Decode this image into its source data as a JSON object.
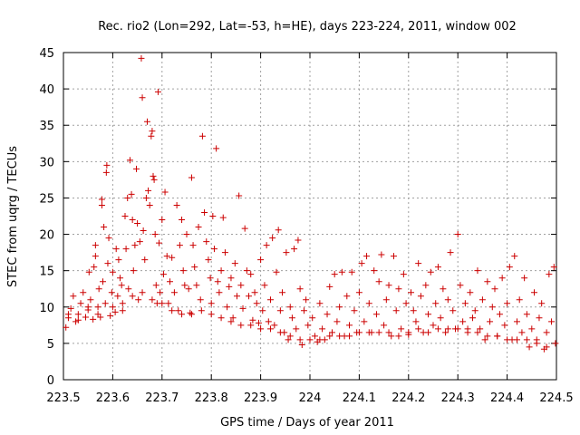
{
  "chart_data": {
    "type": "scatter",
    "title": "Rec. rio2 (Lon=292, Lat=-53, h=HE), days 223-224, 2011, window 002",
    "xlabel": "GPS time / Days of year 2011",
    "ylabel": "STEC from uqrg / TECUs",
    "xlim": [
      223.5,
      224.5
    ],
    "ylim": [
      0,
      45
    ],
    "x_ticks": [
      "223.5",
      "223.6",
      "223.7",
      "223.8",
      "223.9",
      "224",
      "224.1",
      "224.2",
      "224.3",
      "224.4",
      "224.5"
    ],
    "y_ticks": [
      "0",
      "5",
      "10",
      "15",
      "20",
      "25",
      "30",
      "35",
      "40",
      "45"
    ],
    "grid": true,
    "marker": "+",
    "color": "#cc0000",
    "points": [
      [
        223.505,
        7.2
      ],
      [
        223.51,
        8.5
      ],
      [
        223.515,
        9.8
      ],
      [
        223.52,
        11.5
      ],
      [
        223.525,
        8.0
      ],
      [
        223.53,
        9.0
      ],
      [
        223.535,
        10.5
      ],
      [
        223.54,
        12.0
      ],
      [
        223.545,
        8.6
      ],
      [
        223.55,
        9.6
      ],
      [
        223.552,
        14.8
      ],
      [
        223.555,
        11.0
      ],
      [
        223.56,
        8.3
      ],
      [
        223.562,
        15.5
      ],
      [
        223.565,
        17.0
      ],
      [
        223.565,
        18.5
      ],
      [
        223.57,
        10.0
      ],
      [
        223.572,
        12.5
      ],
      [
        223.575,
        8.6
      ],
      [
        223.578,
        24.0
      ],
      [
        223.578,
        24.8
      ],
      [
        223.58,
        13.5
      ],
      [
        223.582,
        21.0
      ],
      [
        223.585,
        10.5
      ],
      [
        223.587,
        28.5
      ],
      [
        223.588,
        29.5
      ],
      [
        223.59,
        16.0
      ],
      [
        223.592,
        19.5
      ],
      [
        223.595,
        8.8
      ],
      [
        223.598,
        12.0
      ],
      [
        223.6,
        14.8
      ],
      [
        223.605,
        9.3
      ],
      [
        223.607,
        18.0
      ],
      [
        223.61,
        11.5
      ],
      [
        223.612,
        16.5
      ],
      [
        223.615,
        14.0
      ],
      [
        223.618,
        13.0
      ],
      [
        223.62,
        9.5
      ],
      [
        223.625,
        22.5
      ],
      [
        223.627,
        18.0
      ],
      [
        223.63,
        25.0
      ],
      [
        223.632,
        12.5
      ],
      [
        223.635,
        30.2
      ],
      [
        223.638,
        25.5
      ],
      [
        223.64,
        22.0
      ],
      [
        223.642,
        15.0
      ],
      [
        223.645,
        18.5
      ],
      [
        223.648,
        29.0
      ],
      [
        223.65,
        21.5
      ],
      [
        223.652,
        11.0
      ],
      [
        223.655,
        19.0
      ],
      [
        223.658,
        44.2
      ],
      [
        223.66,
        38.8
      ],
      [
        223.662,
        20.5
      ],
      [
        223.665,
        16.5
      ],
      [
        223.668,
        25.0
      ],
      [
        223.67,
        35.5
      ],
      [
        223.672,
        26.0
      ],
      [
        223.675,
        24.0
      ],
      [
        223.678,
        33.5
      ],
      [
        223.68,
        34.2
      ],
      [
        223.682,
        28.0
      ],
      [
        223.684,
        27.5
      ],
      [
        223.686,
        20.0
      ],
      [
        223.688,
        13.0
      ],
      [
        223.69,
        10.5
      ],
      [
        223.692,
        39.6
      ],
      [
        223.694,
        18.8
      ],
      [
        223.696,
        12.0
      ],
      [
        223.7,
        22.0
      ],
      [
        223.703,
        14.5
      ],
      [
        223.706,
        25.8
      ],
      [
        223.71,
        17.0
      ],
      [
        223.713,
        10.5
      ],
      [
        223.716,
        13.5
      ],
      [
        223.72,
        16.8
      ],
      [
        223.725,
        12.0
      ],
      [
        223.73,
        24.0
      ],
      [
        223.733,
        9.5
      ],
      [
        223.736,
        18.5
      ],
      [
        223.74,
        22.0
      ],
      [
        223.743,
        15.0
      ],
      [
        223.746,
        13.0
      ],
      [
        223.75,
        20.0
      ],
      [
        223.754,
        12.5
      ],
      [
        223.757,
        9.2
      ],
      [
        223.76,
        27.8
      ],
      [
        223.763,
        18.5
      ],
      [
        223.766,
        15.5
      ],
      [
        223.77,
        13.0
      ],
      [
        223.774,
        21.0
      ],
      [
        223.778,
        11.0
      ],
      [
        223.782,
        33.5
      ],
      [
        223.786,
        23.0
      ],
      [
        223.79,
        19.0
      ],
      [
        223.794,
        16.5
      ],
      [
        223.798,
        14.0
      ],
      [
        223.8,
        10.5
      ],
      [
        223.803,
        22.5
      ],
      [
        223.806,
        18.0
      ],
      [
        223.81,
        31.8
      ],
      [
        223.813,
        13.5
      ],
      [
        223.816,
        12.0
      ],
      [
        223.82,
        15.0
      ],
      [
        223.824,
        22.3
      ],
      [
        223.828,
        17.5
      ],
      [
        223.832,
        10.0
      ],
      [
        223.836,
        12.8
      ],
      [
        223.84,
        14.0
      ],
      [
        223.844,
        8.5
      ],
      [
        223.848,
        16.0
      ],
      [
        223.852,
        11.5
      ],
      [
        223.856,
        25.3
      ],
      [
        223.86,
        13.0
      ],
      [
        223.864,
        9.8
      ],
      [
        223.868,
        20.8
      ],
      [
        223.872,
        15.0
      ],
      [
        223.876,
        11.5
      ],
      [
        223.88,
        14.5
      ],
      [
        223.884,
        8.2
      ],
      [
        223.888,
        12.0
      ],
      [
        223.892,
        10.5
      ],
      [
        223.896,
        7.8
      ],
      [
        223.9,
        16.5
      ],
      [
        223.904,
        9.5
      ],
      [
        223.908,
        13.0
      ],
      [
        223.912,
        18.5
      ],
      [
        223.916,
        8.0
      ],
      [
        223.92,
        11.0
      ],
      [
        223.924,
        19.5
      ],
      [
        223.928,
        7.5
      ],
      [
        223.932,
        14.8
      ],
      [
        223.936,
        20.6
      ],
      [
        223.94,
        9.5
      ],
      [
        223.944,
        12.0
      ],
      [
        223.948,
        6.5
      ],
      [
        223.952,
        17.5
      ],
      [
        223.956,
        5.5
      ],
      [
        223.96,
        10.0
      ],
      [
        223.964,
        8.5
      ],
      [
        223.968,
        18.0
      ],
      [
        223.972,
        7.0
      ],
      [
        223.976,
        19.2
      ],
      [
        223.98,
        12.5
      ],
      [
        223.984,
        4.8
      ],
      [
        223.988,
        9.5
      ],
      [
        223.992,
        11.0
      ],
      [
        223.996,
        7.5
      ],
      [
        224.005,
        8.5
      ],
      [
        224.01,
        6.0
      ],
      [
        224.015,
        5.2
      ],
      [
        224.02,
        10.5
      ],
      [
        224.025,
        7.0
      ],
      [
        224.03,
        5.5
      ],
      [
        224.035,
        9.0
      ],
      [
        224.04,
        12.8
      ],
      [
        224.045,
        6.5
      ],
      [
        224.05,
        14.5
      ],
      [
        224.055,
        8.0
      ],
      [
        224.06,
        10.0
      ],
      [
        224.065,
        14.8
      ],
      [
        224.07,
        6.0
      ],
      [
        224.075,
        11.5
      ],
      [
        224.08,
        7.5
      ],
      [
        224.085,
        14.8
      ],
      [
        224.09,
        9.5
      ],
      [
        224.095,
        6.5
      ],
      [
        224.1,
        12.0
      ],
      [
        224.105,
        16.0
      ],
      [
        224.11,
        8.0
      ],
      [
        224.115,
        17.0
      ],
      [
        224.12,
        10.5
      ],
      [
        224.125,
        6.5
      ],
      [
        224.13,
        15.0
      ],
      [
        224.135,
        9.0
      ],
      [
        224.14,
        13.5
      ],
      [
        224.145,
        17.2
      ],
      [
        224.15,
        7.5
      ],
      [
        224.155,
        11.0
      ],
      [
        224.16,
        13.0
      ],
      [
        224.165,
        6.0
      ],
      [
        224.17,
        17.0
      ],
      [
        224.175,
        9.5
      ],
      [
        224.18,
        12.5
      ],
      [
        224.185,
        7.0
      ],
      [
        224.19,
        14.5
      ],
      [
        224.195,
        10.5
      ],
      [
        224.2,
        6.2
      ],
      [
        224.205,
        12.0
      ],
      [
        224.21,
        9.5
      ],
      [
        224.215,
        8.0
      ],
      [
        224.22,
        16.0
      ],
      [
        224.225,
        11.5
      ],
      [
        224.23,
        6.5
      ],
      [
        224.235,
        13.0
      ],
      [
        224.24,
        9.0
      ],
      [
        224.245,
        14.8
      ],
      [
        224.25,
        7.5
      ],
      [
        224.255,
        10.5
      ],
      [
        224.26,
        15.5
      ],
      [
        224.265,
        8.5
      ],
      [
        224.27,
        12.5
      ],
      [
        224.275,
        6.5
      ],
      [
        224.28,
        11.0
      ],
      [
        224.285,
        17.5
      ],
      [
        224.29,
        9.5
      ],
      [
        224.295,
        7.0
      ],
      [
        224.3,
        20.0
      ],
      [
        224.305,
        13.0
      ],
      [
        224.31,
        8.0
      ],
      [
        224.315,
        10.5
      ],
      [
        224.32,
        6.5
      ],
      [
        224.325,
        12.0
      ],
      [
        224.33,
        8.5
      ],
      [
        224.335,
        9.5
      ],
      [
        224.34,
        15.0
      ],
      [
        224.345,
        7.0
      ],
      [
        224.35,
        11.0
      ],
      [
        224.355,
        5.5
      ],
      [
        224.36,
        13.5
      ],
      [
        224.365,
        8.0
      ],
      [
        224.37,
        10.0
      ],
      [
        224.375,
        12.5
      ],
      [
        224.38,
        6.0
      ],
      [
        224.385,
        9.0
      ],
      [
        224.39,
        14.0
      ],
      [
        224.395,
        7.5
      ],
      [
        224.4,
        10.5
      ],
      [
        224.405,
        15.5
      ],
      [
        224.41,
        5.5
      ],
      [
        224.415,
        17.0
      ],
      [
        224.42,
        8.0
      ],
      [
        224.425,
        11.0
      ],
      [
        224.43,
        6.5
      ],
      [
        224.435,
        14.0
      ],
      [
        224.44,
        9.0
      ],
      [
        224.445,
        4.5
      ],
      [
        224.45,
        7.0
      ],
      [
        224.455,
        12.0
      ],
      [
        224.46,
        5.5
      ],
      [
        224.465,
        8.5
      ],
      [
        224.47,
        10.5
      ],
      [
        224.475,
        4.2
      ],
      [
        224.48,
        6.5
      ],
      [
        224.485,
        14.5
      ],
      [
        224.49,
        8.0
      ],
      [
        224.495,
        15.5
      ],
      [
        224.498,
        5.0
      ],
      [
        223.51,
        9.0
      ],
      [
        223.53,
        8.2
      ],
      [
        223.55,
        10.0
      ],
      [
        223.57,
        9.0
      ],
      [
        223.6,
        10.0
      ],
      [
        223.62,
        10.5
      ],
      [
        223.64,
        11.5
      ],
      [
        223.66,
        12.0
      ],
      [
        223.68,
        11.0
      ],
      [
        223.7,
        10.5
      ],
      [
        223.72,
        9.5
      ],
      [
        223.74,
        9.0
      ],
      [
        223.76,
        9.0
      ],
      [
        223.78,
        9.5
      ],
      [
        223.8,
        9.0
      ],
      [
        223.82,
        8.5
      ],
      [
        223.84,
        8.0
      ],
      [
        223.86,
        7.5
      ],
      [
        223.88,
        7.5
      ],
      [
        223.9,
        7.0
      ],
      [
        223.92,
        7.0
      ],
      [
        223.94,
        6.5
      ],
      [
        223.96,
        6.0
      ],
      [
        223.98,
        5.5
      ],
      [
        224.0,
        5.5
      ],
      [
        224.02,
        5.5
      ],
      [
        224.04,
        6.0
      ],
      [
        224.06,
        6.0
      ],
      [
        224.08,
        6.0
      ],
      [
        224.1,
        6.5
      ],
      [
        224.12,
        6.5
      ],
      [
        224.14,
        6.5
      ],
      [
        224.16,
        6.5
      ],
      [
        224.18,
        6.0
      ],
      [
        224.2,
        6.5
      ],
      [
        224.22,
        7.0
      ],
      [
        224.24,
        6.5
      ],
      [
        224.26,
        7.0
      ],
      [
        224.28,
        7.0
      ],
      [
        224.3,
        7.0
      ],
      [
        224.32,
        7.0
      ],
      [
        224.34,
        6.5
      ],
      [
        224.36,
        6.0
      ],
      [
        224.38,
        6.0
      ],
      [
        224.4,
        5.5
      ],
      [
        224.42,
        5.5
      ],
      [
        224.44,
        5.5
      ],
      [
        224.46,
        5.0
      ],
      [
        224.48,
        4.5
      ]
    ]
  }
}
